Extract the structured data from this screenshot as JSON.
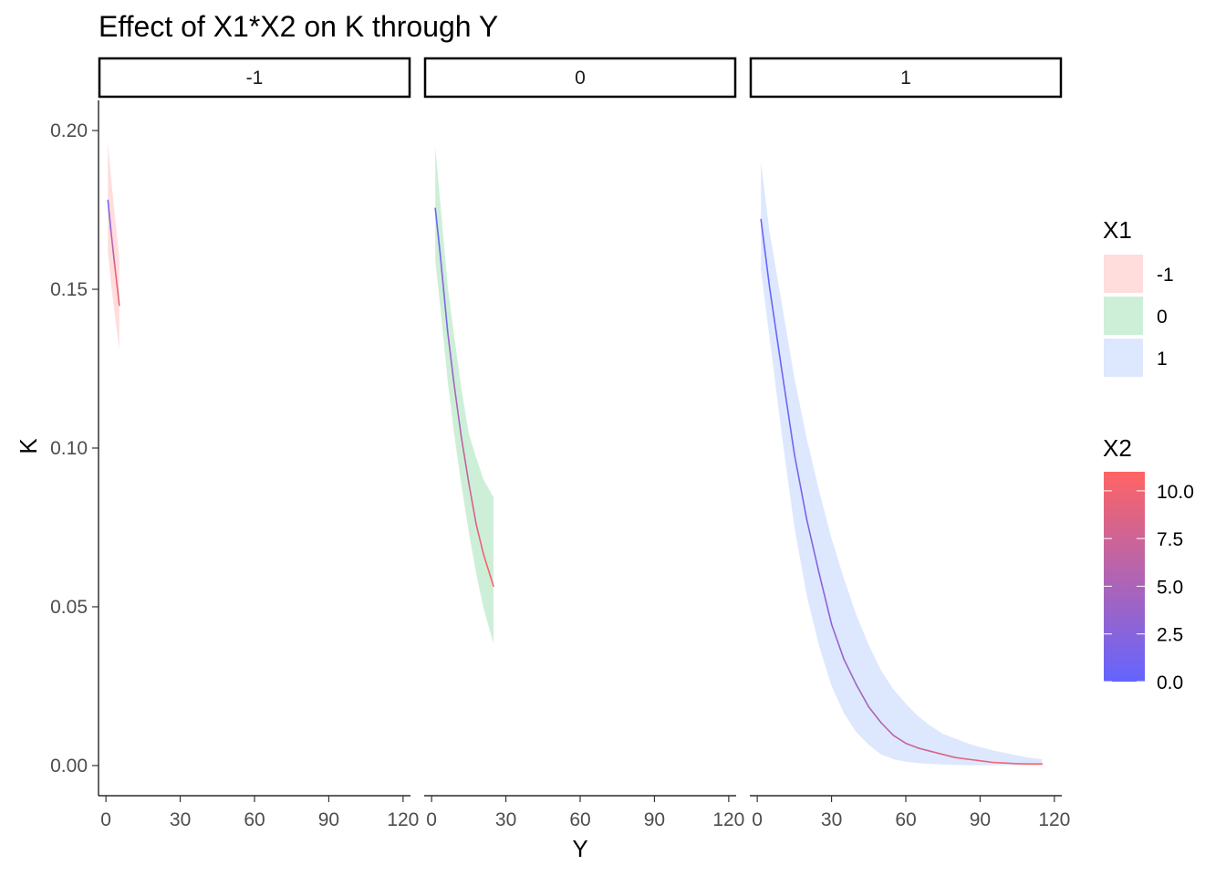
{
  "chart_data": {
    "type": "line",
    "title": "Effect of X1*X2 on K through Y",
    "xlabel": "Y",
    "ylabel": "K",
    "xlim": [
      -3,
      123
    ],
    "ylim": [
      -0.0095,
      0.2095
    ],
    "x_ticks": [
      0,
      30,
      60,
      90,
      120
    ],
    "x_tick_labels": [
      "0",
      "30",
      "60",
      "90",
      "120"
    ],
    "y_ticks": [
      0.0,
      0.05,
      0.1,
      0.15,
      0.2
    ],
    "y_tick_labels": [
      "0.00",
      "0.05",
      "0.10",
      "0.15",
      "0.20"
    ],
    "grid": false,
    "legend_placement": "right",
    "facets": [
      {
        "strip_label": "-1",
        "x1": "-1",
        "series": [
          {
            "x": [
              0.8,
              2.0,
              3.5,
              5.4
            ],
            "fit": [
              0.178,
              0.1685,
              0.158,
              0.145
            ],
            "lower": [
              0.162,
              0.152,
              0.1425,
              0.131
            ],
            "upper": [
              0.1965,
              0.1855,
              0.174,
              0.16
            ],
            "x2": [
              0.0,
              3.8,
              7.5,
              11.0
            ]
          }
        ]
      },
      {
        "strip_label": "0",
        "x1": "0",
        "series": [
          {
            "x": [
              1.5,
              3.5,
              6.5,
              9.0,
              12.0,
              15.0,
              18.0,
              21.0,
              25.0
            ],
            "fit": [
              0.1755,
              0.161,
              0.1365,
              0.1205,
              0.1035,
              0.089,
              0.076,
              0.0665,
              0.0565
            ],
            "lower": [
              0.159,
              0.1445,
              0.121,
              0.105,
              0.0885,
              0.0735,
              0.0605,
              0.0495,
              0.0385
            ],
            "upper": [
              0.195,
              0.1775,
              0.151,
              0.136,
              0.119,
              0.1045,
              0.097,
              0.09,
              0.0845
            ],
            "x2": [
              0.0,
              1.4,
              3.2,
              4.4,
              5.9,
              7.3,
              8.6,
              9.9,
              11.0
            ]
          }
        ]
      },
      {
        "strip_label": "1",
        "x1": "1",
        "series": [
          {
            "x": [
              1.5,
              5,
              10,
              15,
              20,
              25,
              30,
              35,
              40,
              45,
              50,
              55,
              60,
              65,
              70,
              75,
              80,
              85,
              90,
              95,
              100,
              105,
              110,
              115
            ],
            "fit": [
              0.172,
              0.1505,
              0.124,
              0.098,
              0.0775,
              0.0605,
              0.0445,
              0.0335,
              0.0255,
              0.0185,
              0.0135,
              0.0095,
              0.007,
              0.0055,
              0.0045,
              0.0035,
              0.0025,
              0.002,
              0.0015,
              0.001,
              0.0008,
              0.0006,
              0.0005,
              0.0005
            ],
            "lower": [
              0.156,
              0.1345,
              0.1035,
              0.075,
              0.0535,
              0.0375,
              0.025,
              0.0165,
              0.0105,
              0.0065,
              0.0035,
              0.002,
              0.0012,
              0.0008,
              0.0005,
              0.0003,
              0.0002,
              0.0001,
              0.0001,
              0.0001,
              0.0001,
              0.0001,
              0.0001,
              0.0001
            ],
            "upper": [
              0.19,
              0.168,
              0.145,
              0.122,
              0.103,
              0.0865,
              0.0715,
              0.059,
              0.0475,
              0.038,
              0.03,
              0.024,
              0.0195,
              0.0155,
              0.0125,
              0.01,
              0.0085,
              0.007,
              0.0058,
              0.0048,
              0.004,
              0.0032,
              0.0025,
              0.002
            ],
            "x2": [
              0.0,
              0.3,
              0.8,
              1.4,
              2.0,
              2.6,
              3.2,
              3.8,
              4.4,
              5.0,
              5.6,
              6.2,
              6.8,
              7.4,
              8.0,
              8.4,
              8.8,
              9.2,
              9.6,
              10.0,
              10.3,
              10.6,
              10.8,
              11.0
            ]
          }
        ]
      }
    ]
  },
  "legend": {
    "x1": {
      "title": "X1",
      "items": [
        {
          "label": "-1",
          "color": "#FFDDDD"
        },
        {
          "label": "0",
          "color": "#CDEFD8"
        },
        {
          "label": "1",
          "color": "#DDE8FF"
        }
      ]
    },
    "x2": {
      "title": "X2",
      "low_color": "#6464FF",
      "high_color": "#FF6464",
      "range": [
        0,
        11
      ],
      "breaks": [
        0.0,
        2.5,
        5.0,
        7.5,
        10.0
      ],
      "labels": [
        "0.0",
        "2.5",
        "5.0",
        "7.5",
        "10.0"
      ]
    }
  }
}
